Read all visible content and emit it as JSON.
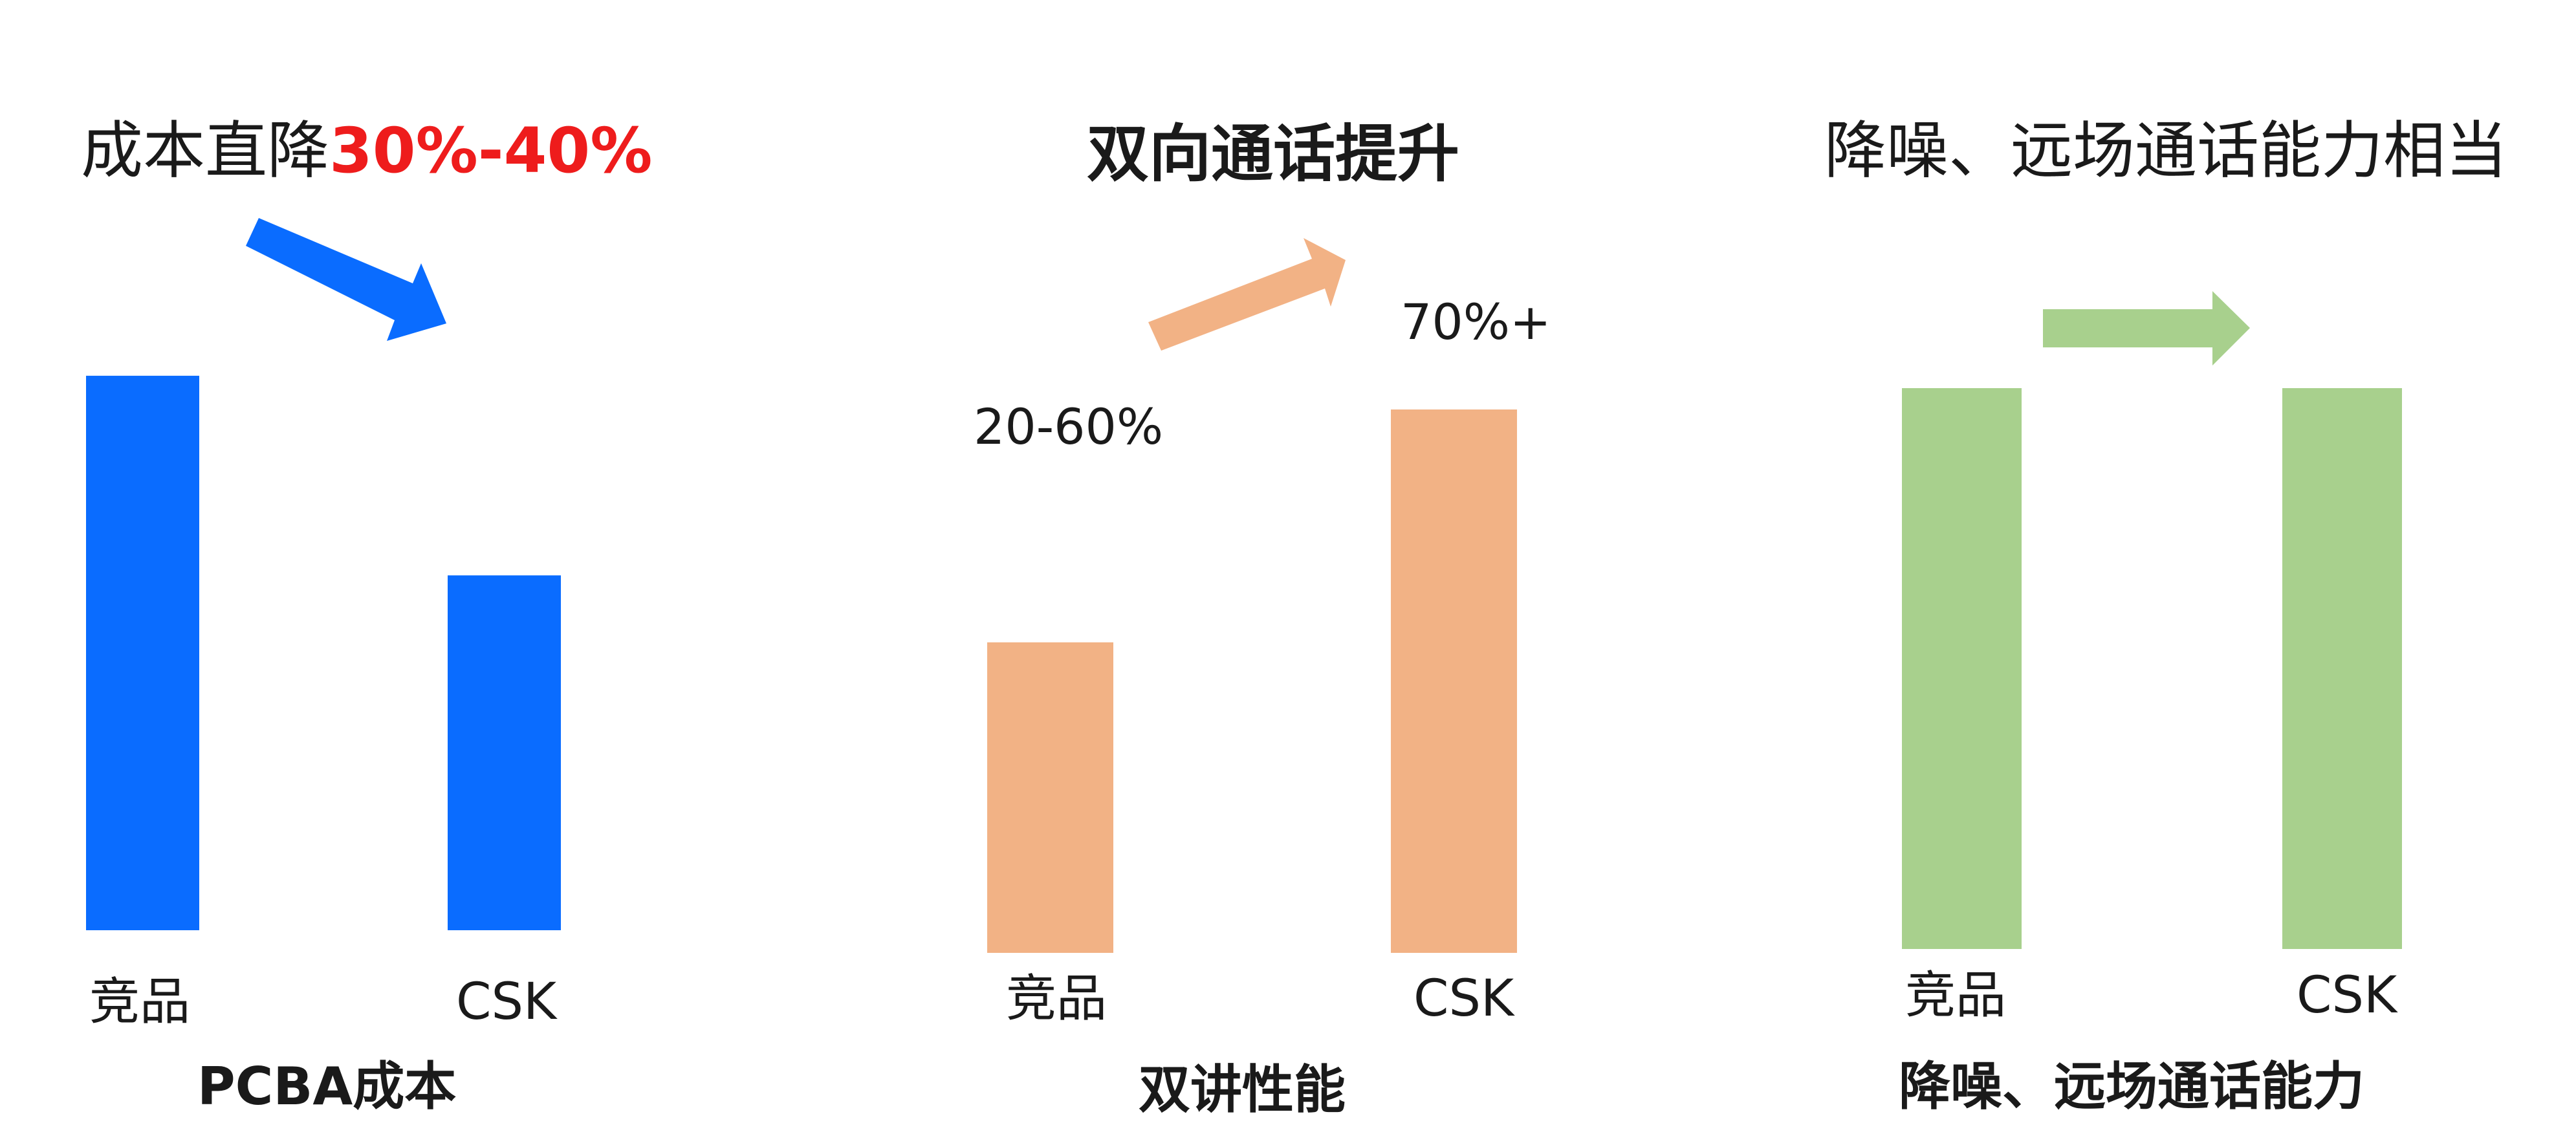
{
  "panels": [
    {
      "headline": "成本直降",
      "headline_highlight": "30%-40%",
      "caption": "PCBA成本",
      "color": "#0a6cff",
      "arrow_direction": "down"
    },
    {
      "headline": "双向通话提升",
      "headline_highlight": "",
      "caption": "双讲性能",
      "color": "#f2b285",
      "arrow_direction": "up"
    },
    {
      "headline": "降噪、远场通话能力相当",
      "headline_highlight": "",
      "caption": "降噪、远场通话能力",
      "color": "#a8d08d",
      "arrow_direction": "flat"
    }
  ],
  "chart_data": [
    {
      "type": "bar",
      "categories": [
        "竞品",
        "CSK"
      ],
      "values": [
        100,
        64
      ],
      "data_labels": [
        "",
        ""
      ],
      "title": "成本直降30%-40%",
      "xlabel": "PCBA成本",
      "ylabel": "",
      "ylim": [
        0,
        105
      ]
    },
    {
      "type": "bar",
      "categories": [
        "竞品",
        "CSK"
      ],
      "values": [
        40,
        70
      ],
      "data_labels": [
        "20-60%",
        "70%+"
      ],
      "title": "双向通话提升",
      "xlabel": "双讲性能",
      "ylabel": "",
      "ylim": [
        0,
        75
      ]
    },
    {
      "type": "bar",
      "categories": [
        "竞品",
        "CSK"
      ],
      "values": [
        100,
        100
      ],
      "data_labels": [
        "",
        ""
      ],
      "title": "降噪、远场通话能力相当",
      "xlabel": "降噪、远场通话能力",
      "ylabel": "",
      "ylim": [
        0,
        100
      ]
    }
  ]
}
